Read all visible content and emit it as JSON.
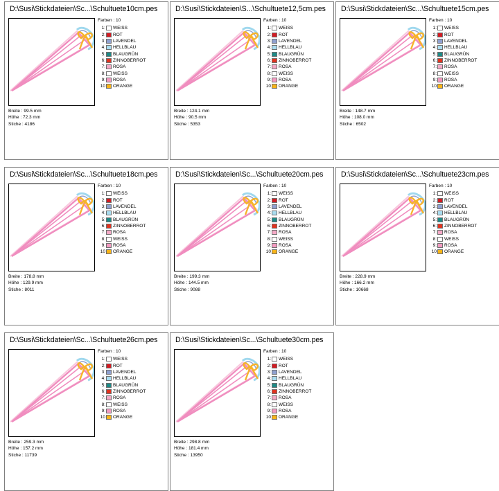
{
  "palette": [
    {
      "num": "1:",
      "name": "WEISS",
      "color": "#ffffff"
    },
    {
      "num": "2:",
      "name": "ROT",
      "color": "#d21b22"
    },
    {
      "num": "3:",
      "name": "LAVENDEL",
      "color": "#8fa0cf"
    },
    {
      "num": "4:",
      "name": "HELLBLAU",
      "color": "#a9dcef"
    },
    {
      "num": "5:",
      "name": "BLAUGRÜN",
      "color": "#1e8a86"
    },
    {
      "num": "6:",
      "name": "ZINNOBERROT",
      "color": "#e1331f"
    },
    {
      "num": "7:",
      "name": "ROSA",
      "color": "#f4a9c6"
    },
    {
      "num": "8:",
      "name": "WEISS",
      "color": "#ffffff"
    },
    {
      "num": "9:",
      "name": "ROSA",
      "color": "#f29ac0"
    },
    {
      "num": "10",
      "name": "ORANGE",
      "color": "#f8b418"
    }
  ],
  "design_colors": {
    "cone": "#f08dbf",
    "cone_light": "#f8c8dd",
    "rim_blue": "#9fd8ee",
    "bow": "#f6b32a"
  },
  "files": [
    {
      "title": "D:\\Susi\\Stickdateien\\Sc...\\Schultuete10cm.pes",
      "colors_count": "Farben : 10",
      "width": "Breite : 99.5 mm",
      "height": "Höhe : 72.3 mm",
      "stitches": "Stiche : 4186"
    },
    {
      "title": "D:\\Susi\\Stickdateien\\S...\\Schultuete12,5cm.pes",
      "colors_count": "Farben : 10",
      "width": "Breite : 124.1 mm",
      "height": "Höhe : 90.5 mm",
      "stitches": "Stiche : 5353"
    },
    {
      "title": "D:\\Susi\\Stickdateien\\Sc...\\Schultuete15cm.pes",
      "colors_count": "Farben : 10",
      "width": "Breite : 148.7 mm",
      "height": "Höhe : 108.0 mm",
      "stitches": "Stiche : 6502"
    },
    {
      "title": "D:\\Susi\\Stickdateien\\Sc...\\Schultuete18cm.pes",
      "colors_count": "Farben : 10",
      "width": "Breite : 178.8 mm",
      "height": "Höhe : 129.9 mm",
      "stitches": "Stiche : 8011"
    },
    {
      "title": "D:\\Susi\\Stickdateien\\Sc...\\Schultuete20cm.pes",
      "colors_count": "Farben : 10",
      "width": "Breite : 199.3 mm",
      "height": "Höhe : 144.5 mm",
      "stitches": "Stiche : 9088"
    },
    {
      "title": "D:\\Susi\\Stickdateien\\Sc...\\Schultuete23cm.pes",
      "colors_count": "Farben : 10",
      "width": "Breite : 228.9 mm",
      "height": "Höhe : 166.2 mm",
      "stitches": "Stiche : 10668"
    },
    {
      "title": "D:\\Susi\\Stickdateien\\Sc...\\Schultuete26cm.pes",
      "colors_count": "Farben : 10",
      "width": "Breite : 259.3 mm",
      "height": "Höhe : 157.2 mm",
      "stitches": "Stiche : 11739"
    },
    {
      "title": "D:\\Susi\\Stickdateien\\Sc...\\Schultuete30cm.pes",
      "colors_count": "Farben : 10",
      "width": "Breite : 298.8 mm",
      "height": "Höhe : 181.4 mm",
      "stitches": "Stiche : 13950"
    }
  ]
}
